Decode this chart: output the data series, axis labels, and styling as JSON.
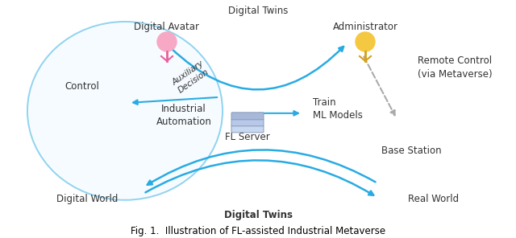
{
  "bg_color": "#ffffff",
  "labels": {
    "digital_avatar": "Digital Avatar",
    "digital_twins_top": "Digital Twins",
    "administrator": "Administrator",
    "auxiliary_decision": "Auxiliary\nDecision",
    "control": "Control",
    "remote_control": "Remote Control\n(via Metaverse)",
    "industrial_automation": "Industrial\nAutomation",
    "train_ml": "Train\nML Models",
    "fl_server": "FL Server",
    "base_station": "Base Station",
    "digital_world": "Digital World",
    "real_world": "Real World",
    "digital_twins_bottom": "Digital Twins"
  },
  "arrow_color": "#29ABE2",
  "dashed_arrow_color": "#AAAAAA",
  "text_color": "#333333",
  "caption": "Fig. 1.  Illustration of FL-assisted Industrial Metaverse"
}
